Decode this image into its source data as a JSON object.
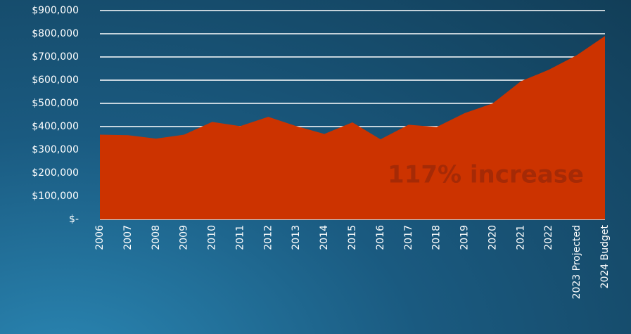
{
  "chart_data": {
    "type": "area",
    "categories": [
      "2006",
      "2007",
      "2008",
      "2009",
      "2010",
      "2011",
      "2012",
      "2013",
      "2014",
      "2015",
      "2016",
      "2017",
      "2018",
      "2019",
      "2020",
      "2021",
      "2022",
      "2023 Projected",
      "2024 Budget"
    ],
    "values": [
      365000,
      363000,
      348000,
      365000,
      420000,
      402000,
      442000,
      402000,
      368000,
      418000,
      345000,
      408000,
      398000,
      458000,
      500000,
      595000,
      645000,
      708000,
      790000
    ],
    "color": "#cc3300",
    "ylim": [
      0,
      900000
    ],
    "yticks": [
      {
        "value": 0,
        "label": "$-"
      },
      {
        "value": 100000,
        "label": "$100,000"
      },
      {
        "value": 200000,
        "label": "$200,000"
      },
      {
        "value": 300000,
        "label": "$300,000"
      },
      {
        "value": 400000,
        "label": "$400,000"
      },
      {
        "value": 500000,
        "label": "$500,000"
      },
      {
        "value": 600000,
        "label": "$600,000"
      },
      {
        "value": 700000,
        "label": "$700,000"
      },
      {
        "value": 800000,
        "label": "$800,000"
      },
      {
        "value": 900000,
        "label": "$900,000"
      }
    ],
    "grid": true,
    "annotation": "117% increase"
  }
}
